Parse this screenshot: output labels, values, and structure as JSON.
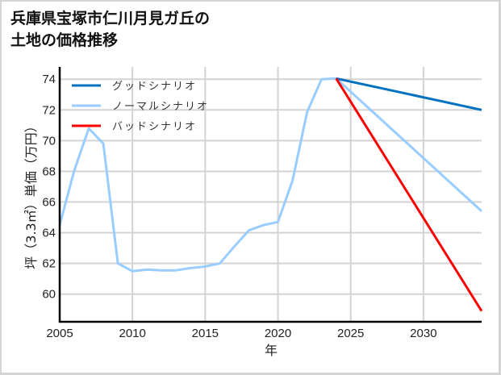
{
  "title": "兵庫県宝塚市仁川月見ガ丘の\n土地の価格推移",
  "chart_data": {
    "type": "line",
    "title": "兵庫県宝塚市仁川月見ガ丘の土地の価格推移",
    "xlabel": "年",
    "ylabel": "坪（3.3㎡）単価（万円）",
    "xlim": [
      2005,
      2034
    ],
    "ylim": [
      58.2,
      74.8
    ],
    "xticks": [
      2005,
      2010,
      2015,
      2020,
      2025,
      2030
    ],
    "yticks": [
      60,
      62,
      64,
      66,
      68,
      70,
      72,
      74
    ],
    "grid": true,
    "legend_position": "upper left",
    "series": [
      {
        "name": "グッドシナリオ",
        "color": "#0070c0",
        "x": [
          2024,
          2034
        ],
        "values": [
          74.05,
          72.0
        ]
      },
      {
        "name": "ノーマルシナリオ",
        "color": "#99ccff",
        "x": [
          2005,
          2006,
          2007,
          2008,
          2009,
          2010,
          2011,
          2012,
          2013,
          2014,
          2015,
          2016,
          2017,
          2018,
          2019,
          2020,
          2021,
          2022,
          2023,
          2024,
          2034
        ],
        "values": [
          64.5,
          68.05,
          70.8,
          69.8,
          62.0,
          61.5,
          61.6,
          61.55,
          61.55,
          61.7,
          61.8,
          62.0,
          63.1,
          64.15,
          64.5,
          64.7,
          67.4,
          71.85,
          74.0,
          74.05,
          65.4
        ]
      },
      {
        "name": "バッドシナリオ",
        "color": "#ff0000",
        "x": [
          2024,
          2034
        ],
        "values": [
          74.05,
          58.9
        ]
      }
    ]
  }
}
